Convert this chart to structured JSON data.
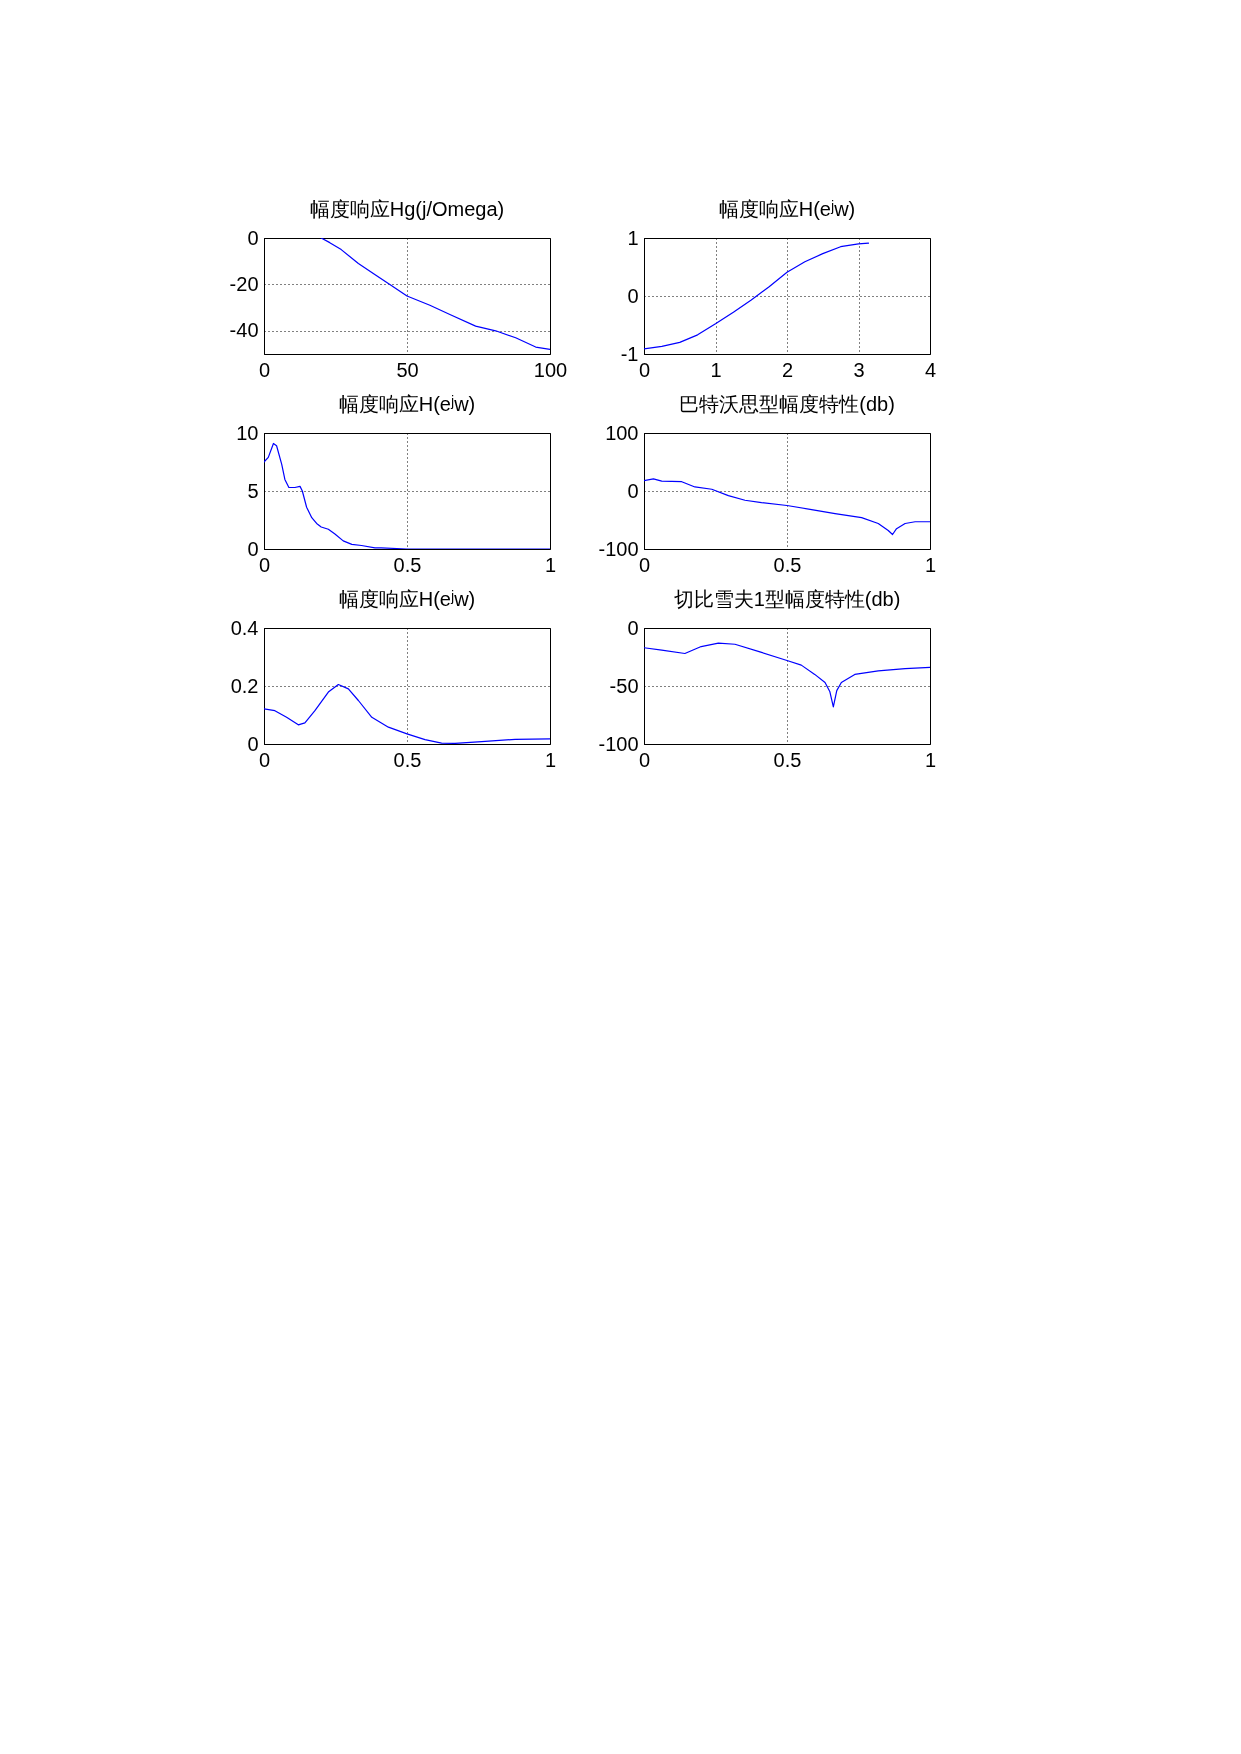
{
  "chart_data": [
    {
      "type": "line",
      "title": "幅度响应Hg(j/Omega)",
      "x": [
        20,
        23,
        27,
        33,
        39,
        44,
        50,
        58,
        65,
        74,
        81,
        88,
        95,
        100
      ],
      "values": [
        0,
        -2,
        -5,
        -11,
        -16,
        -20,
        -25,
        -29,
        -33,
        -38,
        -40,
        -43,
        -47,
        -48
      ],
      "color": "#0000ff",
      "xlim": [
        0,
        100
      ],
      "xticks": [
        0,
        50,
        100
      ],
      "ylim": [
        -50,
        0
      ],
      "yticks": [
        -40,
        -20,
        0
      ],
      "grid": true
    },
    {
      "type": "line",
      "title": "幅度响应H(eʲw)",
      "x": [
        0,
        0.25,
        0.5,
        0.75,
        1,
        1.25,
        1.5,
        1.75,
        2,
        2.25,
        2.5,
        2.75,
        3,
        3.14
      ],
      "values": [
        -0.91,
        -0.87,
        -0.8,
        -0.67,
        -0.48,
        -0.28,
        -0.07,
        0.16,
        0.41,
        0.59,
        0.73,
        0.85,
        0.9,
        0.91
      ],
      "color": "#0000ff",
      "xlim": [
        0,
        4
      ],
      "xticks": [
        0,
        1,
        2,
        3,
        4
      ],
      "ylim": [
        -1,
        1
      ],
      "yticks": [
        -1,
        0,
        1
      ],
      "grid": true
    },
    {
      "type": "line",
      "title": "幅度响应H(eʲw)",
      "x": [
        0,
        0.015,
        0.033,
        0.044,
        0.062,
        0.073,
        0.087,
        0.108,
        0.126,
        0.134,
        0.149,
        0.167,
        0.184,
        0.2,
        0.225,
        0.248,
        0.277,
        0.307,
        0.341,
        0.388,
        0.41,
        0.5,
        1
      ],
      "values": [
        7.5,
        7.9,
        9.1,
        8.9,
        7.3,
        6,
        5.3,
        5.3,
        5.4,
        5,
        3.6,
        2.7,
        2.2,
        1.9,
        1.7,
        1.3,
        0.7,
        0.4,
        0.3,
        0.1,
        0.1,
        0,
        0
      ],
      "color": "#0000ff",
      "xlim": [
        0,
        1
      ],
      "xticks": [
        0,
        0.5,
        1
      ],
      "ylim": [
        0,
        10
      ],
      "yticks": [
        0,
        5,
        10
      ],
      "grid": true
    },
    {
      "type": "line",
      "title": "巴特沃思型幅度特性(db)",
      "x": [
        0,
        0.033,
        0.062,
        0.132,
        0.178,
        0.237,
        0.295,
        0.353,
        0.411,
        0.5,
        0.586,
        0.668,
        0.761,
        0.819,
        0.854,
        0.869,
        0.883,
        0.913,
        0.948,
        1
      ],
      "values": [
        18,
        21,
        17,
        16,
        7,
        3,
        -8,
        -16,
        -20,
        -25,
        -32,
        -39,
        -46,
        -56,
        -68,
        -75,
        -65,
        -56,
        -53,
        -53
      ],
      "color": "#0000ff",
      "xlim": [
        0,
        1
      ],
      "xticks": [
        0,
        0.5,
        1
      ],
      "ylim": [
        -100,
        100
      ],
      "yticks": [
        -100,
        0,
        100
      ],
      "grid": true
    },
    {
      "type": "line",
      "title": "幅度响应H(eʲw)",
      "x": [
        0,
        0.038,
        0.079,
        0.12,
        0.143,
        0.178,
        0.225,
        0.26,
        0.295,
        0.33,
        0.377,
        0.435,
        0.5,
        0.563,
        0.621,
        0.668,
        0.761,
        0.878,
        1
      ],
      "values": [
        0.121,
        0.115,
        0.092,
        0.066,
        0.073,
        0.115,
        0.179,
        0.205,
        0.19,
        0.15,
        0.092,
        0.058,
        0.035,
        0.015,
        0.003,
        0.002,
        0.008,
        0.016,
        0.018
      ],
      "color": "#0000ff",
      "xlim": [
        0,
        1
      ],
      "xticks": [
        0,
        0.5,
        1
      ],
      "ylim": [
        0,
        0.4
      ],
      "yticks": [
        0,
        0.2,
        0.4
      ],
      "grid": true
    },
    {
      "type": "line",
      "title": "切比雪夫1型幅度特性(db)",
      "x": [
        0,
        0.062,
        0.143,
        0.2,
        0.26,
        0.318,
        0.411,
        0.5,
        0.55,
        0.597,
        0.633,
        0.65,
        0.662,
        0.674,
        0.69,
        0.737,
        0.819,
        0.913,
        1
      ],
      "values": [
        -17,
        -19,
        -22,
        -16,
        -13,
        -14,
        -21,
        -28,
        -32,
        -40,
        -47,
        -55,
        -68,
        -54,
        -47,
        -40,
        -37,
        -35,
        -34
      ],
      "color": "#0000ff",
      "xlim": [
        0,
        1
      ],
      "xticks": [
        0,
        0.5,
        1
      ],
      "ylim": [
        -100,
        0
      ],
      "yticks": [
        -100,
        -50,
        0
      ],
      "grid": true
    }
  ]
}
